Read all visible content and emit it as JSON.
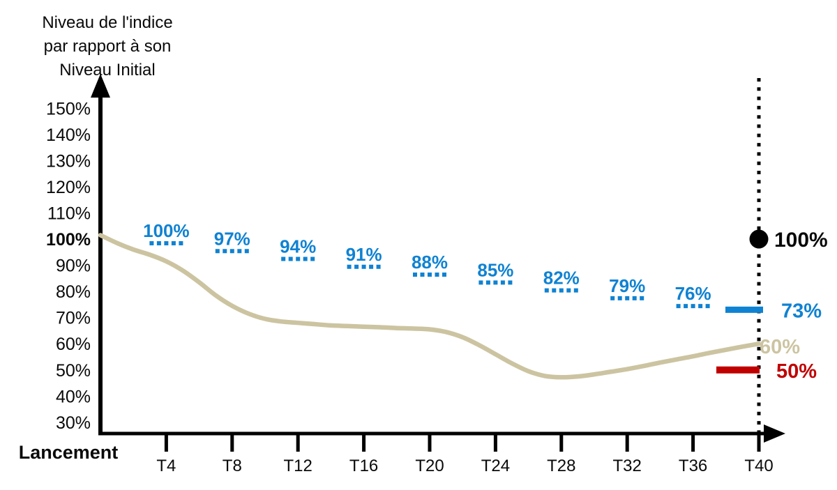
{
  "title": {
    "line1": "Niveau de l'indice",
    "line2": "par rapport à son",
    "line3": "Niveau Initial"
  },
  "x_axis": {
    "origin_label": "Lancement",
    "tick_labels": [
      "T4",
      "T8",
      "T12",
      "T16",
      "T20",
      "T24",
      "T28",
      "T32",
      "T36",
      "T40"
    ]
  },
  "y_axis": {
    "tick_labels": [
      "150%",
      "140%",
      "130%",
      "120%",
      "110%",
      "100%",
      "90%",
      "80%",
      "70%",
      "60%",
      "50%",
      "40%",
      "30%"
    ],
    "bold_tick": "100%"
  },
  "colors": {
    "blue": "#0F82D2",
    "red": "#C00000",
    "curve": "#CCC4A1",
    "axis": "#000000",
    "text": "#0A0A0A"
  },
  "chart_data": {
    "type": "line",
    "title": "Niveau de l'indice par rapport à son Niveau Initial",
    "x_axis_origin_label": "Lancement",
    "x_ticks": [
      "T4",
      "T8",
      "T12",
      "T16",
      "T20",
      "T24",
      "T28",
      "T32",
      "T36",
      "T40"
    ],
    "y_ticks_pct": [
      150,
      140,
      130,
      120,
      110,
      100,
      90,
      80,
      70,
      60,
      50,
      40,
      30
    ],
    "ylim_pct": [
      30,
      150
    ],
    "x_range_quarters": [
      0,
      40
    ],
    "grid": false,
    "legend": false,
    "series": [
      {
        "name": "indice",
        "type": "smooth-line",
        "color_key": "curve",
        "x_quarters": [
          0,
          1,
          2,
          3,
          4,
          5,
          6,
          7,
          8,
          9,
          10,
          11,
          12,
          13,
          14,
          15,
          16,
          17,
          18,
          19,
          20,
          21,
          22,
          23,
          24,
          25,
          26,
          27,
          28,
          29,
          30,
          31,
          32,
          33,
          34,
          35,
          36,
          37,
          38,
          39,
          40
        ],
        "values_pct": [
          101.5,
          98.5,
          96,
          94,
          91.5,
          88,
          83.5,
          78.5,
          74.5,
          71.5,
          69.5,
          68.5,
          68,
          67.5,
          67,
          66.8,
          66.5,
          66.3,
          66,
          65.8,
          65.5,
          64.5,
          62.5,
          59.5,
          56,
          52.5,
          49.5,
          47.7,
          47.2,
          47.5,
          48.3,
          49.3,
          50.3,
          51.5,
          52.8,
          54,
          55.2,
          56.5,
          57.7,
          58.9,
          60
        ]
      },
      {
        "name": "niveaux-de-rappel-degressifs",
        "type": "dashed-step-markers",
        "color_key": "blue",
        "categories": [
          "T4",
          "T8",
          "T12",
          "T16",
          "T20",
          "T24",
          "T28",
          "T32",
          "T36"
        ],
        "values_pct": [
          100,
          97,
          94,
          91,
          88,
          85,
          82,
          79,
          76
        ],
        "labels": [
          "100%",
          "97%",
          "94%",
          "91%",
          "88%",
          "85%",
          "82%",
          "79%",
          "76%"
        ]
      }
    ],
    "final_observation": {
      "x_tick": "T40",
      "vertical_line": "dotted",
      "markers": [
        {
          "label": "100%",
          "value_pct": 100,
          "marker": "black-dot",
          "color_key": "axis"
        },
        {
          "label": "73%",
          "value_pct": 73,
          "marker": "horizontal-bar",
          "color_key": "blue"
        },
        {
          "label": "60%",
          "value_pct": 60,
          "marker": "curve-end",
          "color_key": "curve"
        },
        {
          "label": "50%",
          "value_pct": 50,
          "marker": "horizontal-bar",
          "color_key": "red"
        }
      ]
    }
  }
}
